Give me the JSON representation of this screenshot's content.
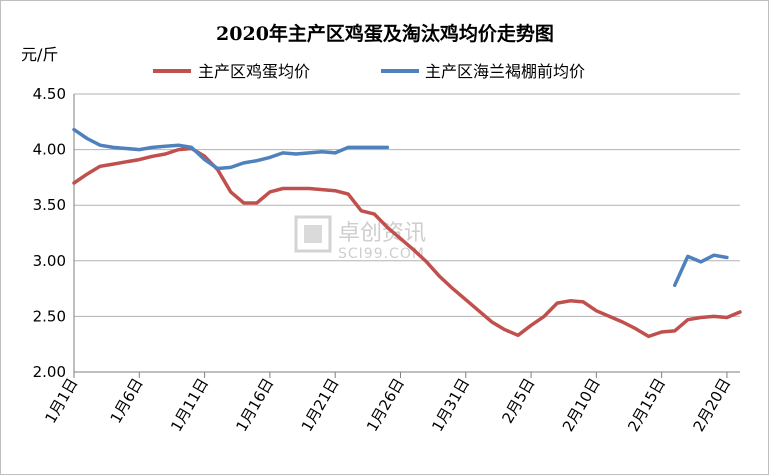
{
  "chart_data": {
    "type": "line",
    "title": "2020年主产区鸡蛋及淘汰鸡均价走势图",
    "ylabel": "元/斤",
    "xlabel": "",
    "ylim": [
      2.0,
      4.5
    ],
    "yticks": [
      "2.00",
      "2.50",
      "3.00",
      "3.50",
      "4.00",
      "4.50"
    ],
    "grid": "horizontal",
    "legend": "top",
    "x_start": "1月1日",
    "categories": [
      "1月1日",
      "1月2日",
      "1月3日",
      "1月4日",
      "1月5日",
      "1月6日",
      "1月7日",
      "1月8日",
      "1月9日",
      "1月10日",
      "1月11日",
      "1月12日",
      "1月13日",
      "1月14日",
      "1月15日",
      "1月16日",
      "1月17日",
      "1月18日",
      "1月19日",
      "1月20日",
      "1月21日",
      "1月22日",
      "1月23日",
      "1月24日",
      "1月25日",
      "1月26日",
      "1月27日",
      "1月28日",
      "1月29日",
      "1月30日",
      "1月31日",
      "2月1日",
      "2月2日",
      "2月3日",
      "2月4日",
      "2月5日",
      "2月6日",
      "2月7日",
      "2月8日",
      "2月9日",
      "2月10日",
      "2月11日",
      "2月12日",
      "2月13日",
      "2月14日",
      "2月15日",
      "2月16日",
      "2月17日",
      "2月18日",
      "2月19日",
      "2月20日",
      "2月21日"
    ],
    "xtick_labels": [
      "1月1日",
      "1月6日",
      "1月11日",
      "1月16日",
      "1月21日",
      "1月26日",
      "1月31日",
      "2月5日",
      "2月10日",
      "2月15日",
      "2月20日"
    ],
    "xtick_indices": [
      0,
      5,
      10,
      15,
      20,
      25,
      30,
      35,
      40,
      45,
      50
    ],
    "series": [
      {
        "name": "主产区鸡蛋均价",
        "color": "#c0504d",
        "values": [
          3.7,
          3.78,
          3.85,
          3.87,
          3.89,
          3.91,
          3.94,
          3.96,
          4.0,
          4.01,
          3.94,
          3.82,
          3.62,
          3.52,
          3.52,
          3.62,
          3.65,
          3.65,
          3.65,
          3.64,
          3.63,
          3.6,
          3.45,
          3.42,
          3.3,
          3.2,
          3.1,
          2.99,
          2.86,
          2.75,
          2.65,
          2.55,
          2.45,
          2.38,
          2.33,
          2.42,
          2.5,
          2.62,
          2.64,
          2.63,
          2.55,
          2.5,
          2.45,
          2.39,
          2.32,
          2.36,
          2.37,
          2.47,
          2.49,
          2.5,
          2.49,
          2.54
        ]
      },
      {
        "name": "主产区海兰褐棚前均价",
        "color": "#4f81bd",
        "values": [
          4.18,
          4.1,
          4.04,
          4.02,
          4.01,
          4.0,
          4.02,
          4.03,
          4.04,
          4.02,
          3.91,
          3.83,
          3.84,
          3.88,
          3.9,
          3.93,
          3.97,
          3.96,
          3.97,
          3.98,
          3.97,
          4.02,
          4.02,
          4.02,
          4.02,
          null,
          null,
          null,
          null,
          null,
          null,
          null,
          null,
          null,
          null,
          null,
          null,
          null,
          null,
          null,
          null,
          null,
          null,
          null,
          null,
          null,
          2.78,
          3.04,
          2.99,
          3.05,
          3.03,
          null
        ]
      }
    ]
  },
  "watermark": {
    "text": "卓创资讯",
    "sub": "SCI99.COM"
  }
}
